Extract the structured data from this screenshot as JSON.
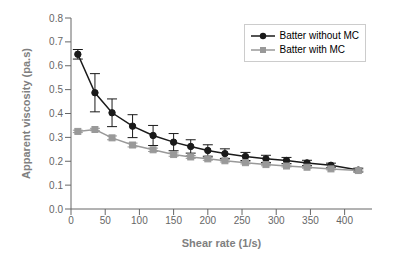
{
  "chart_data": {
    "type": "line",
    "xlabel": "Shear rate (1/s)",
    "ylabel": "Apparent viscosity (pa.s)",
    "xlim": [
      0,
      440
    ],
    "ylim": [
      0,
      0.8
    ],
    "xticks": [
      0,
      50,
      100,
      150,
      200,
      250,
      300,
      350,
      400
    ],
    "yticks": [
      {
        "value": 0,
        "label": "0.0"
      },
      0.1,
      0.2,
      0.3,
      0.4,
      0.5,
      0.6,
      0.7,
      0.8
    ],
    "legend": "upper right",
    "x": [
      10,
      35,
      60,
      90,
      120,
      150,
      175,
      200,
      225,
      255,
      285,
      315,
      345,
      380,
      420
    ],
    "series": [
      {
        "name": "Batter without MC",
        "color": "#1a1a1a",
        "marker": "circle",
        "values": [
          0.648,
          0.487,
          0.403,
          0.347,
          0.308,
          0.28,
          0.262,
          0.245,
          0.232,
          0.22,
          0.21,
          0.203,
          0.193,
          0.183,
          0.163
        ],
        "errors": [
          0.02,
          0.08,
          0.058,
          0.048,
          0.042,
          0.036,
          0.028,
          0.024,
          0.02,
          0.017,
          0.015,
          0.013,
          0.011,
          0.009,
          0.008
        ]
      },
      {
        "name": "Batter with MC",
        "color": "#999999",
        "marker": "square",
        "values": [
          0.325,
          0.333,
          0.298,
          0.268,
          0.248,
          0.228,
          0.218,
          0.21,
          0.202,
          0.194,
          0.186,
          0.18,
          0.175,
          0.168,
          0.161
        ],
        "errors": [
          0.005,
          0.005,
          0.008,
          0.008,
          0.007,
          0.007,
          0.006,
          0.006,
          0.005,
          0.005,
          0.005,
          0.004,
          0.004,
          0.004,
          0.003
        ]
      }
    ]
  }
}
